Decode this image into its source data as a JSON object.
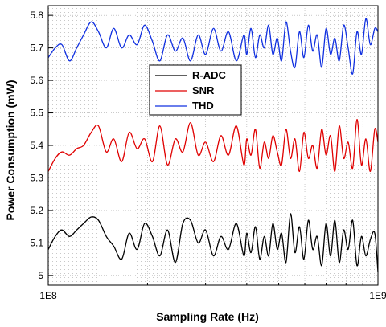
{
  "chart_data": {
    "type": "line",
    "title": "",
    "xlabel": "Sampling Rate (Hz)",
    "ylabel": "Power Consumption (mW)",
    "x_scale": "log",
    "xlim": [
      100000000,
      1000000000
    ],
    "ylim": [
      4.97,
      5.83
    ],
    "x_ticks": [
      {
        "value": 100000000,
        "label": "1E8"
      },
      {
        "value": 1000000000,
        "label": "1E9"
      }
    ],
    "y_ticks": [
      {
        "value": 5.0,
        "label": "5"
      },
      {
        "value": 5.1,
        "label": "5.1"
      },
      {
        "value": 5.2,
        "label": "5.2"
      },
      {
        "value": 5.3,
        "label": "5.3"
      },
      {
        "value": 5.4,
        "label": "5.4"
      },
      {
        "value": 5.5,
        "label": "5.5"
      },
      {
        "value": 5.6,
        "label": "5.6"
      },
      {
        "value": 5.7,
        "label": "5.7"
      },
      {
        "value": 5.8,
        "label": "5.8"
      }
    ],
    "grid": true,
    "legend_position": "upper-center",
    "series": [
      {
        "name": "R-ADC",
        "color": "#000000",
        "x": [
          100000000,
          105000000,
          110000000,
          116000000,
          122000000,
          128000000,
          135000000,
          142000000,
          150000000,
          158000000,
          167000000,
          176000000,
          186000000,
          196000000,
          207000000,
          218000000,
          230000000,
          243000000,
          256000000,
          270000000,
          285000000,
          300000000,
          317000000,
          334000000,
          352000000,
          372000000,
          392000000,
          400000000,
          412000000,
          425000000,
          438000000,
          452000000,
          466000000,
          480000000,
          495000000,
          510000000,
          526000000,
          543000000,
          560000000,
          578000000,
          596000000,
          615000000,
          634000000,
          654000000,
          675000000,
          696000000,
          718000000,
          740000000,
          763000000,
          787000000,
          812000000,
          838000000,
          864000000,
          891000000,
          919000000,
          948000000,
          978000000,
          1000000000
        ],
        "y": [
          5.08,
          5.12,
          5.14,
          5.12,
          5.14,
          5.16,
          5.18,
          5.17,
          5.12,
          5.09,
          5.05,
          5.13,
          5.08,
          5.16,
          5.12,
          5.06,
          5.14,
          5.04,
          5.16,
          5.17,
          5.1,
          5.14,
          5.06,
          5.12,
          5.08,
          5.16,
          5.06,
          5.13,
          5.07,
          5.15,
          5.05,
          5.12,
          5.06,
          5.16,
          5.08,
          5.13,
          5.04,
          5.19,
          5.07,
          5.15,
          5.05,
          5.17,
          5.08,
          5.12,
          5.03,
          5.16,
          5.06,
          5.17,
          5.04,
          5.14,
          5.08,
          5.17,
          5.03,
          5.12,
          5.06,
          5.11,
          5.13,
          5.01
        ]
      },
      {
        "name": "SNR",
        "color": "#e00000",
        "x": [
          100000000,
          105000000,
          110000000,
          116000000,
          122000000,
          128000000,
          135000000,
          142000000,
          150000000,
          158000000,
          167000000,
          176000000,
          186000000,
          196000000,
          207000000,
          218000000,
          230000000,
          243000000,
          256000000,
          270000000,
          285000000,
          300000000,
          317000000,
          334000000,
          352000000,
          372000000,
          392000000,
          400000000,
          412000000,
          425000000,
          438000000,
          452000000,
          466000000,
          480000000,
          495000000,
          510000000,
          526000000,
          543000000,
          560000000,
          578000000,
          596000000,
          615000000,
          634000000,
          654000000,
          675000000,
          696000000,
          718000000,
          740000000,
          763000000,
          787000000,
          812000000,
          838000000,
          864000000,
          891000000,
          919000000,
          948000000,
          978000000,
          1000000000
        ],
        "y": [
          5.32,
          5.36,
          5.38,
          5.37,
          5.39,
          5.4,
          5.44,
          5.46,
          5.38,
          5.42,
          5.35,
          5.44,
          5.39,
          5.42,
          5.35,
          5.46,
          5.34,
          5.42,
          5.38,
          5.47,
          5.37,
          5.41,
          5.35,
          5.43,
          5.37,
          5.46,
          5.34,
          5.42,
          5.37,
          5.45,
          5.33,
          5.41,
          5.36,
          5.43,
          5.38,
          5.34,
          5.45,
          5.36,
          5.42,
          5.32,
          5.44,
          5.36,
          5.4,
          5.33,
          5.45,
          5.37,
          5.43,
          5.32,
          5.46,
          5.36,
          5.41,
          5.33,
          5.48,
          5.34,
          5.42,
          5.32,
          5.45,
          5.41
        ]
      },
      {
        "name": "THD",
        "color": "#1030e0",
        "x": [
          100000000,
          105000000,
          110000000,
          116000000,
          122000000,
          128000000,
          135000000,
          142000000,
          150000000,
          158000000,
          167000000,
          176000000,
          186000000,
          196000000,
          207000000,
          218000000,
          230000000,
          243000000,
          256000000,
          270000000,
          285000000,
          300000000,
          317000000,
          334000000,
          352000000,
          372000000,
          392000000,
          400000000,
          412000000,
          425000000,
          438000000,
          452000000,
          466000000,
          480000000,
          495000000,
          510000000,
          526000000,
          543000000,
          560000000,
          578000000,
          596000000,
          615000000,
          634000000,
          654000000,
          675000000,
          696000000,
          718000000,
          740000000,
          763000000,
          787000000,
          812000000,
          838000000,
          864000000,
          891000000,
          919000000,
          948000000,
          978000000,
          1000000000
        ],
        "y": [
          5.67,
          5.7,
          5.71,
          5.66,
          5.7,
          5.74,
          5.78,
          5.75,
          5.7,
          5.76,
          5.7,
          5.74,
          5.71,
          5.77,
          5.72,
          5.66,
          5.74,
          5.69,
          5.73,
          5.66,
          5.74,
          5.68,
          5.76,
          5.69,
          5.75,
          5.66,
          5.74,
          5.68,
          5.76,
          5.67,
          5.74,
          5.7,
          5.77,
          5.68,
          5.73,
          5.66,
          5.78,
          5.69,
          5.64,
          5.75,
          5.67,
          5.77,
          5.69,
          5.74,
          5.64,
          5.76,
          5.68,
          5.73,
          5.66,
          5.77,
          5.7,
          5.62,
          5.75,
          5.68,
          5.79,
          5.71,
          5.76,
          5.75
        ]
      }
    ]
  }
}
